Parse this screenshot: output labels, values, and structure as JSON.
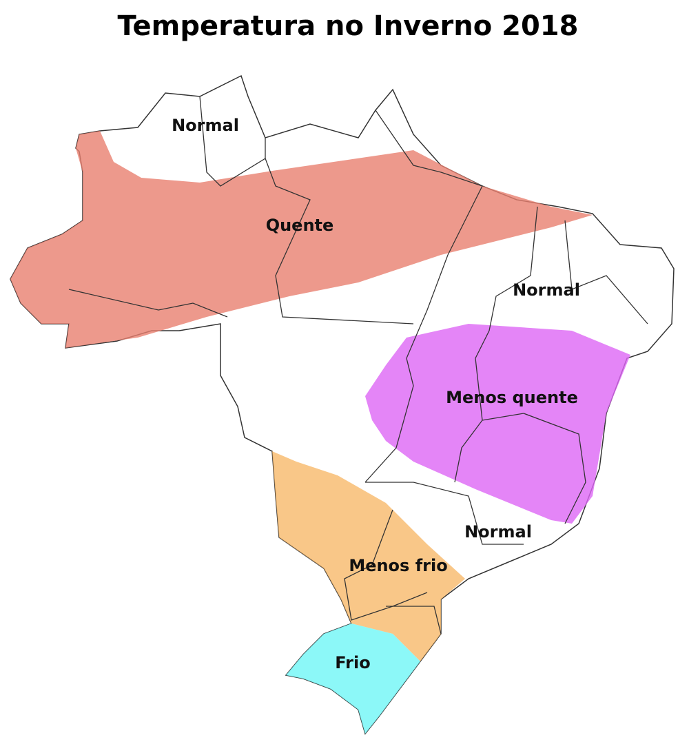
{
  "title": "Temperatura no Inverno 2018",
  "regions": [
    {
      "label": "Normal"
    },
    {
      "label": "Quente"
    },
    {
      "label": "Normal"
    },
    {
      "label": "Menos quente"
    },
    {
      "label": "Normal"
    },
    {
      "label": "Menos frio"
    },
    {
      "label": "Frio"
    }
  ]
}
